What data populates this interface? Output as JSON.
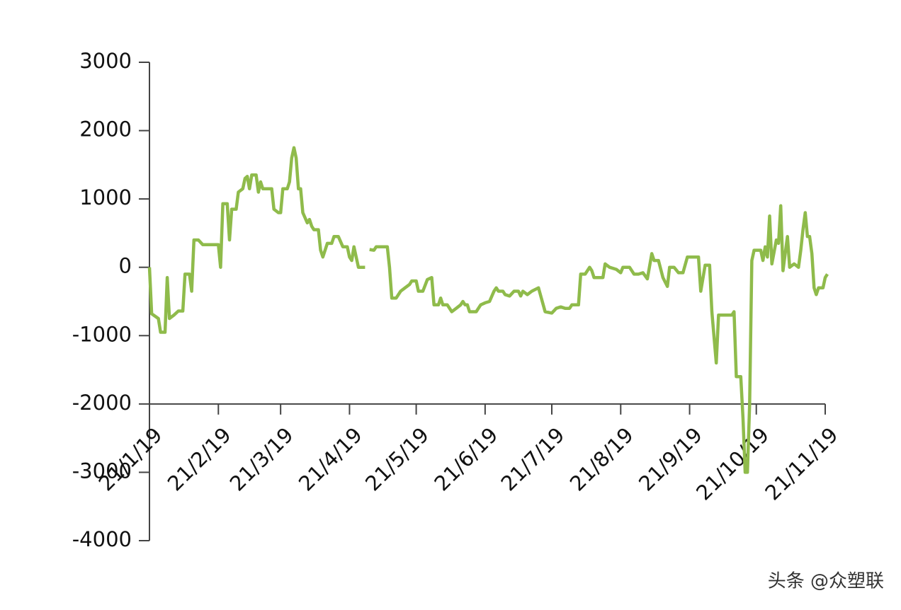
{
  "chart_data": {
    "type": "line",
    "x": [
      "21/1/19",
      "21/1/20",
      "21/1/23",
      "21/1/24",
      "21/1/26",
      "21/1/27",
      "21/1/28",
      "21/1/30",
      "21/2/1",
      "21/2/3",
      "21/2/4",
      "21/2/6",
      "21/2/7",
      "21/2/8",
      "21/2/10",
      "21/2/12",
      "21/2/19",
      "21/2/20",
      "21/2/21",
      "21/2/23",
      "21/2/24",
      "21/2/25",
      "21/2/27",
      "21/2/28",
      "21/3/2",
      "21/3/3",
      "21/3/4",
      "21/3/5",
      "21/3/6",
      "21/3/8",
      "21/3/9",
      "21/3/10",
      "21/3/11",
      "21/3/15",
      "21/3/16",
      "21/3/18",
      "21/3/19",
      "21/3/20",
      "21/3/22",
      "21/3/23",
      "21/3/24",
      "21/3/25",
      "21/3/26",
      "21/3/27",
      "21/3/28",
      "21/3/29",
      "21/3/31",
      "21/4/1",
      "21/4/2",
      "21/4/3",
      "21/4/5",
      "21/4/6",
      "21/4/7",
      "21/4/9",
      "21/4/11",
      "21/4/12",
      "21/4/14",
      "21/4/16",
      "21/4/18",
      "21/4/19",
      "21/4/20",
      "21/4/21",
      "21/4/23",
      "21/4/26",
      "21/4/27",
      "21/4/28",
      "21/4/30",
      "21/5/1",
      "21/5/6",
      "21/5/7",
      "21/5/8",
      "21/5/10",
      "21/5/12",
      "21/5/14",
      "21/5/16",
      "21/5/17",
      "21/5/19",
      "21/5/20",
      "21/5/22",
      "21/5/24",
      "21/5/26",
      "21/5/27",
      "21/5/29",
      "21/5/30",
      "21/5/31",
      "21/6/2",
      "21/6/4",
      "21/6/6",
      "21/6/8",
      "21/6/9",
      "21/6/10",
      "21/6/11",
      "21/6/12",
      "21/6/15",
      "21/6/17",
      "21/6/19",
      "21/6/21",
      "21/6/23",
      "21/6/24",
      "21/6/25",
      "21/6/27",
      "21/6/28",
      "21/6/30",
      "21/7/2",
      "21/7/4",
      "21/7/5",
      "21/7/6",
      "21/7/8",
      "21/7/10",
      "21/7/13",
      "21/7/16",
      "21/7/19",
      "21/7/21",
      "21/7/23",
      "21/7/25",
      "21/7/27",
      "21/7/28",
      "21/7/31",
      "21/8/1",
      "21/8/3",
      "21/8/5",
      "21/8/6",
      "21/8/7",
      "21/8/11",
      "21/8/12",
      "21/8/14",
      "21/8/17",
      "21/8/19",
      "21/8/20",
      "21/8/23",
      "21/8/25",
      "21/8/27",
      "21/8/29",
      "21/8/31",
      "21/9/2",
      "21/9/3",
      "21/9/5",
      "21/9/7",
      "21/9/9",
      "21/9/10",
      "21/9/12",
      "21/9/14",
      "21/9/16",
      "21/9/18",
      "21/9/23",
      "21/9/24",
      "21/9/26",
      "21/9/28",
      "21/9/29",
      "21/10/1",
      "21/10/2",
      "21/10/8",
      "21/10/9",
      "21/10/10",
      "21/10/12",
      "21/10/13",
      "21/10/14",
      "21/10/15",
      "21/10/16",
      "21/10/17",
      "21/10/18",
      "21/10/21",
      "21/10/22",
      "21/10/23",
      "21/10/24",
      "21/10/25",
      "21/10/26",
      "21/10/28",
      "21/10/29",
      "21/10/30",
      "21/10/31",
      "21/11/1",
      "21/11/2",
      "21/11/3",
      "21/11/5",
      "21/11/7",
      "21/11/8",
      "21/11/9",
      "21/11/10",
      "21/11/11",
      "21/11/12",
      "21/11/13",
      "21/11/14",
      "21/11/15",
      "21/11/16",
      "21/11/18",
      "21/11/19",
      "21/11/20"
    ],
    "series": [
      {
        "color": "#8fbb4b",
        "values": [
          0,
          -680,
          -750,
          -950,
          -950,
          -150,
          -750,
          -700,
          -640,
          -640,
          -100,
          -100,
          -350,
          400,
          400,
          330,
          330,
          0,
          930,
          930,
          400,
          850,
          850,
          1100,
          1150,
          1300,
          1330,
          1150,
          1350,
          1350,
          1100,
          1250,
          1150,
          1150,
          850,
          800,
          800,
          1150,
          1150,
          1250,
          1600,
          1750,
          1600,
          1150,
          1150,
          800,
          650,
          700,
          600,
          550,
          550,
          250,
          150,
          350,
          350,
          450,
          450,
          300,
          300,
          150,
          100,
          300,
          0,
          0,
          null,
          260,
          250,
          300,
          300,
          0,
          -450,
          -450,
          -350,
          -300,
          -250,
          -200,
          -200,
          -350,
          -350,
          -180,
          -150,
          -550,
          -550,
          -450,
          -550,
          -550,
          -650,
          -600,
          -550,
          -500,
          -550,
          -550,
          -650,
          -650,
          -550,
          -520,
          -500,
          -350,
          -300,
          -350,
          -350,
          -400,
          -420,
          -350,
          -350,
          -420,
          -350,
          -400,
          -350,
          -300,
          -650,
          -670,
          -600,
          -580,
          -600,
          -600,
          -550,
          -550,
          -100,
          -100,
          0,
          -50,
          -150,
          -150,
          50,
          0,
          -30,
          -80,
          0,
          0,
          -100,
          -100,
          -80,
          -170,
          200,
          100,
          100,
          -150,
          -280,
          0,
          0,
          -80,
          -80,
          150,
          150,
          -350,
          30,
          30,
          -650,
          -1400,
          -700,
          -700,
          -650,
          -1600,
          -1600,
          -2200,
          -3000,
          -3000,
          -2000,
          100,
          250,
          250,
          100,
          300,
          150,
          750,
          50,
          400,
          350,
          900,
          -50,
          200,
          450,
          0,
          50,
          0,
          250,
          550,
          800,
          450,
          450,
          200,
          -300,
          -400,
          -300,
          -300,
          -150,
          -100
        ]
      }
    ],
    "xlim": [
      "21/1/19",
      "21/11/19"
    ],
    "xticks": [
      "21/1/19",
      "21/2/19",
      "21/3/19",
      "21/4/19",
      "21/5/19",
      "21/6/19",
      "21/7/19",
      "21/8/19",
      "21/9/19",
      "21/10/19",
      "21/11/19"
    ],
    "ylim": [
      -4000,
      3000
    ],
    "yticks": [
      -4000,
      -3000,
      -2000,
      -1000,
      0,
      1000,
      2000,
      3000
    ],
    "xaxis_crosses": -2000,
    "watermark": "头条 @众塑联"
  }
}
